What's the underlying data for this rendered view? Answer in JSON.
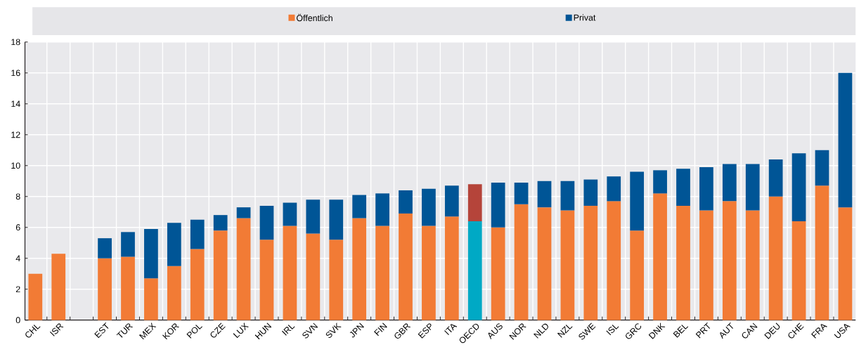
{
  "chart_data": {
    "type": "bar",
    "stacked": true,
    "categories": [
      "CHL",
      "ISR",
      null,
      "EST",
      "TUR",
      "MEX",
      "KOR",
      "POL",
      "CZE",
      "LUX",
      "HUN",
      "IRL",
      "SVN",
      "SVK",
      "JPN",
      "FIN",
      "GBR",
      "ESP",
      "ITA",
      "OECD",
      "AUS",
      "NOR",
      "NLD",
      "NZL",
      "SWE",
      "ISL",
      "GRC",
      "DNK",
      "BEL",
      "PRT",
      "AUT",
      "CAN",
      "DEU",
      "CHE",
      "FRA",
      "USA"
    ],
    "series": [
      {
        "name": "Öffentlich",
        "color": "#f27b35",
        "colors": [
          "#f27b35",
          "#f27b35",
          "#f27b35",
          "#f27b35",
          "#f27b35",
          "#f27b35",
          "#f27b35",
          "#f27b35",
          "#f27b35",
          "#f27b35",
          "#f27b35",
          "#f27b35",
          "#f27b35",
          "#f27b35",
          "#f27b35",
          "#f27b35",
          "#f27b35",
          "#f27b35",
          "#f27b35",
          "#00a9c5",
          "#f27b35",
          "#f27b35",
          "#f27b35",
          "#f27b35",
          "#f27b35",
          "#f27b35",
          "#f27b35",
          "#f27b35",
          "#f27b35",
          "#f27b35",
          "#f27b35",
          "#f27b35",
          "#f27b35",
          "#f27b35",
          "#f27b35",
          "#f27b35"
        ],
        "values": [
          3.0,
          4.3,
          null,
          4.0,
          4.1,
          2.7,
          3.5,
          4.6,
          5.8,
          6.6,
          5.2,
          6.1,
          5.6,
          5.2,
          6.6,
          6.1,
          6.9,
          6.1,
          6.7,
          6.4,
          6.0,
          7.5,
          7.3,
          7.1,
          7.4,
          7.7,
          5.8,
          8.2,
          7.4,
          7.1,
          7.7,
          7.1,
          8.0,
          6.4,
          8.7,
          7.3
        ]
      },
      {
        "name": "Privat",
        "color": "#005596",
        "colors": [
          "#005596",
          "#005596",
          "#005596",
          "#005596",
          "#005596",
          "#005596",
          "#005596",
          "#005596",
          "#005596",
          "#005596",
          "#005596",
          "#005596",
          "#005596",
          "#005596",
          "#005596",
          "#005596",
          "#005596",
          "#005596",
          "#005596",
          "#b5443a",
          "#005596",
          "#005596",
          "#005596",
          "#005596",
          "#005596",
          "#005596",
          "#005596",
          "#005596",
          "#005596",
          "#005596",
          "#005596",
          "#005596",
          "#005596",
          "#005596",
          "#005596",
          "#005596"
        ],
        "values": [
          null,
          null,
          null,
          1.3,
          1.6,
          3.2,
          2.8,
          1.9,
          1.0,
          0.7,
          2.2,
          1.5,
          2.2,
          2.6,
          1.5,
          2.1,
          1.5,
          2.4,
          2.0,
          2.4,
          2.9,
          1.4,
          1.7,
          1.9,
          1.7,
          1.6,
          3.8,
          1.5,
          2.4,
          2.8,
          2.4,
          3.0,
          2.4,
          4.4,
          2.3,
          8.7
        ]
      }
    ],
    "ylim": [
      0,
      18
    ],
    "yticks": [
      0,
      2,
      4,
      6,
      8,
      10,
      12,
      14,
      16,
      18
    ],
    "grid": true,
    "legend": "top"
  }
}
